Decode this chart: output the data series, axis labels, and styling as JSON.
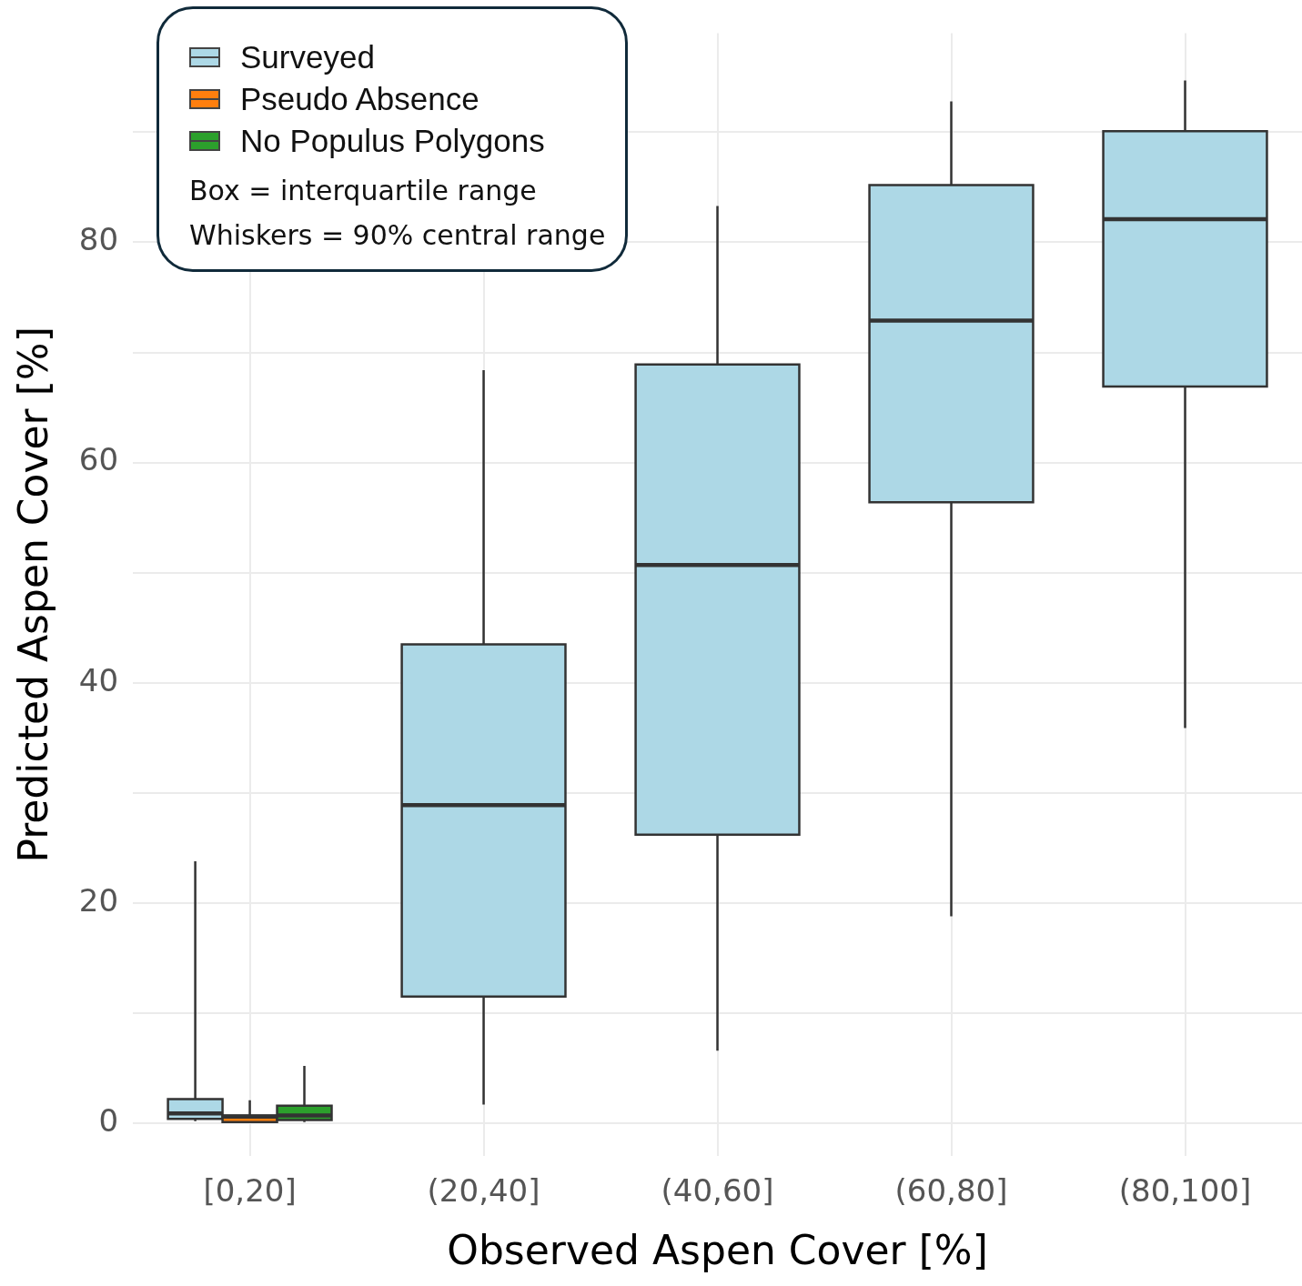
{
  "chart_data": {
    "type": "box",
    "xlabel": "Observed Aspen Cover [%]",
    "ylabel": "Predicted Aspen Cover [%]",
    "categories": [
      "[0,20]",
      "(20,40]",
      "(40,60]",
      "(60,80]",
      "(80,100]"
    ],
    "series": [
      {
        "name": "Surveyed",
        "color": "#add8e6",
        "boxes": [
          {
            "low": 0.2,
            "q1": 0.4,
            "median": 0.9,
            "q3": 2.2,
            "high": 23.8
          },
          {
            "low": 1.7,
            "q1": 11.5,
            "median": 28.9,
            "q3": 43.5,
            "high": 68.4
          },
          {
            "low": 6.6,
            "q1": 26.2,
            "median": 50.7,
            "q3": 68.9,
            "high": 83.3
          },
          {
            "low": 18.8,
            "q1": 56.4,
            "median": 72.9,
            "q3": 85.2,
            "high": 92.8
          },
          {
            "low": 35.9,
            "q1": 66.9,
            "median": 82.1,
            "q3": 90.1,
            "high": 94.7
          }
        ]
      },
      {
        "name": "Pseudo Absence",
        "color": "#ff7f0e",
        "boxes": [
          {
            "low": 0,
            "q1": 0.1,
            "median": 0.6,
            "q3": 0.7,
            "high": 2.1
          },
          null,
          null,
          null,
          null
        ]
      },
      {
        "name": "No Populus Polygons",
        "color": "#2ca02c",
        "boxes": [
          {
            "low": 0.1,
            "q1": 0.3,
            "median": 0.7,
            "q3": 1.6,
            "high": 5.2
          },
          null,
          null,
          null,
          null
        ]
      }
    ],
    "ylim": [
      -3,
      99
    ],
    "yticks": [
      0,
      {
        "value": 10,
        "label": null
      },
      20,
      {
        "value": 30,
        "label": null
      },
      40,
      {
        "value": 50,
        "label": null
      },
      60,
      {
        "value": 70,
        "label": null
      },
      80,
      {
        "value": 90,
        "label": null
      }
    ],
    "grid": true,
    "legend": "top left",
    "annotations": [
      "Box = interquartile range",
      "Whiskers =  90% central range"
    ]
  }
}
